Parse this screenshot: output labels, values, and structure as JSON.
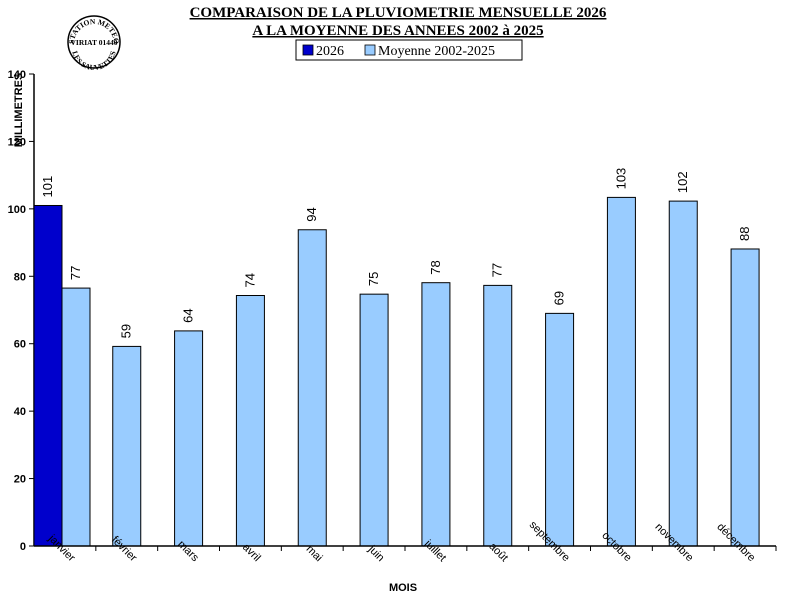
{
  "chart_data": {
    "type": "bar",
    "title_line1": "COMPARAISON DE LA PLUVIOMETRIE MENSUELLE 2026",
    "title_line2": "A LA MOYENNE DES ANNEES 2002 à 2025",
    "xlabel": "MOIS",
    "ylabel": "MILLIMETRES",
    "ylim": [
      0,
      140
    ],
    "yticks": [
      0,
      20,
      40,
      60,
      80,
      100,
      120,
      140
    ],
    "grid": false,
    "legend_position": "top-center",
    "categories": [
      "janvier",
      "février",
      "mars",
      "avril",
      "mai",
      "juin",
      "juillet",
      "août",
      "septembre",
      "octobre",
      "novembre",
      "décembre"
    ],
    "series": [
      {
        "name": "2026",
        "color": "#0000cc",
        "values": [
          101,
          null,
          null,
          null,
          null,
          null,
          null,
          null,
          null,
          null,
          null,
          null
        ],
        "labels": [
          "101",
          "",
          "",
          "",
          "",
          "",
          "",
          "",
          "",
          "",
          "",
          ""
        ]
      },
      {
        "name": "Moyenne 2002-2025",
        "color": "#99ccff",
        "values": [
          76.5,
          59.2,
          63.8,
          74.3,
          93.8,
          74.7,
          78.1,
          77.3,
          69,
          103.4,
          102.3,
          88.1
        ],
        "labels": [
          "77",
          "59",
          "64",
          "74",
          "94",
          "75",
          "78",
          "77",
          "69",
          "103",
          "102",
          "88"
        ]
      }
    ]
  },
  "stamp": {
    "top": "STATION METEO",
    "middle": "VIRIAT 01440",
    "bottom": "LES SAUVETTES"
  }
}
